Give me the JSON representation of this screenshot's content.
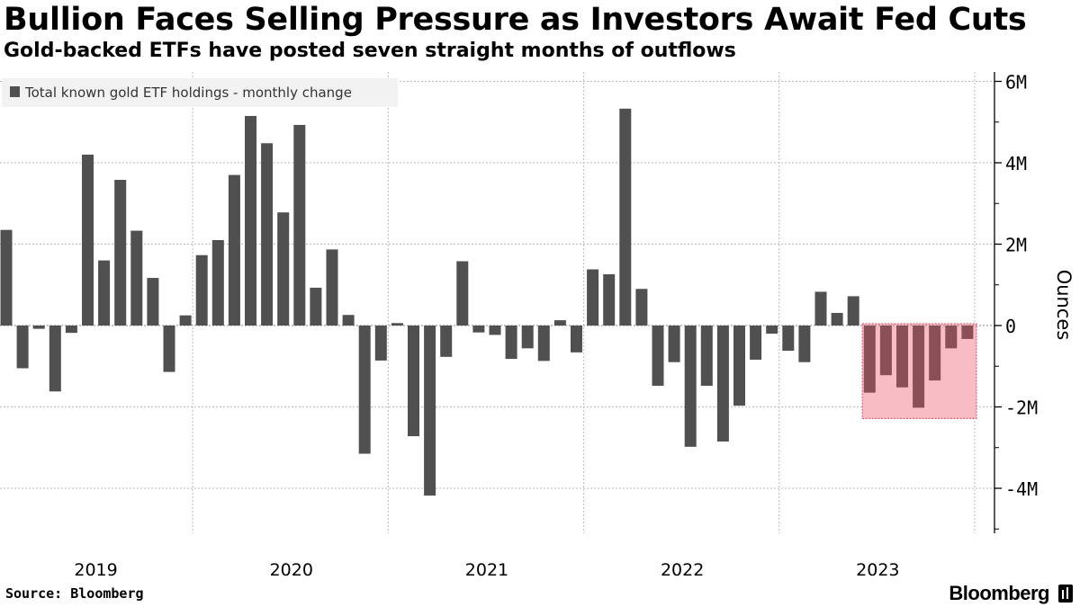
{
  "title": "Bullion Faces Selling Pressure as Investors Await Fed Cuts",
  "subtitle": "Gold-backed ETFs have posted seven straight months of outflows",
  "source": "Source: Bloomberg",
  "brand": "Bloomberg",
  "colors": {
    "bar": "#505050",
    "highlight_bar": "#8a4f57",
    "highlight_fill": "#f7bcc4",
    "highlight_border": "#e06070",
    "grid": "#bbbbbb",
    "legend_bg": "#f2f2f2"
  },
  "chart_data": {
    "type": "bar",
    "title": "Bullion Faces Selling Pressure as Investors Await Fed Cuts",
    "legend": "Total known gold ETF holdings - monthly change",
    "ylabel": "Ounces",
    "ylim": [
      -5000000,
      6200000
    ],
    "yticks": [
      6000000,
      4000000,
      2000000,
      0,
      -2000000,
      -4000000
    ],
    "ytick_labels": [
      "6M",
      "4M",
      "2M",
      "0",
      "-2M",
      "-4M"
    ],
    "year_labels": [
      "2019",
      "2020",
      "2021",
      "2022",
      "2023"
    ],
    "first_month": "2019-01",
    "values": [
      2350000,
      -1050000,
      -80000,
      -1620000,
      -180000,
      4200000,
      1600000,
      3580000,
      2330000,
      1170000,
      -1140000,
      250000,
      1730000,
      2100000,
      3700000,
      5150000,
      4480000,
      2780000,
      4930000,
      930000,
      1870000,
      260000,
      -3150000,
      -860000,
      60000,
      -2720000,
      -4180000,
      -770000,
      1580000,
      -170000,
      -230000,
      -820000,
      -560000,
      -870000,
      130000,
      -660000,
      1380000,
      1260000,
      5330000,
      900000,
      -1480000,
      -900000,
      -2980000,
      -1480000,
      -2850000,
      -1970000,
      -840000,
      -200000,
      -620000,
      -900000,
      830000,
      310000,
      720000,
      -1650000,
      -1220000,
      -1520000,
      -2020000,
      -1350000,
      -560000,
      -330000
    ],
    "highlight_range": [
      53,
      59
    ],
    "highlight_label": "seven straight months of outflows"
  }
}
